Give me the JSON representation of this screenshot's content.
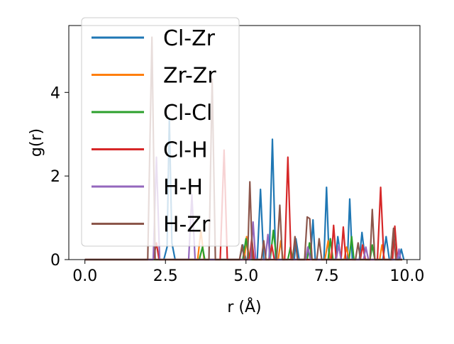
{
  "chart_data": {
    "type": "line",
    "xlabel": "r (Å)",
    "ylabel": "g(r)",
    "xlim": [
      -0.5,
      10.4
    ],
    "ylim": [
      0,
      5.6
    ],
    "x_ticks": [
      0.0,
      2.5,
      5.0,
      7.5,
      10.0
    ],
    "x_tick_labels": [
      "0.0",
      "2.5",
      "5.0",
      "7.5",
      "10.0"
    ],
    "y_ticks": [
      0,
      2,
      4
    ],
    "y_tick_labels": [
      "0",
      "2",
      "4"
    ],
    "grid": false,
    "legend_placement": "upper-left",
    "series": [
      {
        "name": "Cl-Zr",
        "color": "#1f77b4",
        "points": [
          [
            0,
            0
          ],
          [
            2.45,
            0
          ],
          [
            2.55,
            0.3
          ],
          [
            2.62,
            3.4
          ],
          [
            2.7,
            0.4
          ],
          [
            2.8,
            0
          ],
          [
            4.8,
            0
          ],
          [
            4.9,
            0.35
          ],
          [
            5.0,
            0
          ],
          [
            5.35,
            0
          ],
          [
            5.45,
            1.68
          ],
          [
            5.55,
            0
          ],
          [
            5.72,
            0
          ],
          [
            5.82,
            2.88
          ],
          [
            5.92,
            0
          ],
          [
            6.5,
            0
          ],
          [
            6.55,
            0.5
          ],
          [
            6.65,
            0
          ],
          [
            7.0,
            0
          ],
          [
            7.08,
            0.95
          ],
          [
            7.15,
            0
          ],
          [
            7.42,
            0
          ],
          [
            7.5,
            1.73
          ],
          [
            7.58,
            0
          ],
          [
            7.78,
            0
          ],
          [
            7.85,
            0.55
          ],
          [
            7.95,
            0
          ],
          [
            8.15,
            0
          ],
          [
            8.22,
            1.45
          ],
          [
            8.3,
            0
          ],
          [
            8.52,
            0
          ],
          [
            8.6,
            0.65
          ],
          [
            8.7,
            0
          ],
          [
            9.25,
            0
          ],
          [
            9.35,
            0.55
          ],
          [
            9.45,
            0
          ],
          [
            9.75,
            0
          ],
          [
            9.82,
            0.25
          ],
          [
            9.9,
            0
          ]
        ]
      },
      {
        "name": "Zr-Zr",
        "color": "#ff7f0e",
        "points": [
          [
            0,
            0
          ],
          [
            3.5,
            0
          ],
          [
            3.6,
            0.7
          ],
          [
            3.7,
            0
          ],
          [
            4.95,
            0
          ],
          [
            5.02,
            0.55
          ],
          [
            5.1,
            0
          ],
          [
            6.0,
            0
          ],
          [
            6.08,
            0.45
          ],
          [
            6.15,
            0
          ],
          [
            7.45,
            0
          ],
          [
            7.55,
            0.45
          ],
          [
            7.62,
            0
          ],
          [
            8.05,
            0
          ],
          [
            8.12,
            0.3
          ],
          [
            8.2,
            0
          ],
          [
            9.15,
            0
          ],
          [
            9.22,
            0.35
          ],
          [
            9.3,
            0
          ],
          [
            9.85,
            0
          ]
        ]
      },
      {
        "name": "Cl-Cl",
        "color": "#2ca02c",
        "points": [
          [
            0,
            0
          ],
          [
            3.55,
            0
          ],
          [
            3.65,
            0.3
          ],
          [
            3.72,
            0
          ],
          [
            4.9,
            0
          ],
          [
            5.0,
            0.5
          ],
          [
            5.1,
            0
          ],
          [
            5.75,
            0
          ],
          [
            5.85,
            0.7
          ],
          [
            5.95,
            0
          ],
          [
            6.3,
            0
          ],
          [
            6.38,
            0.3
          ],
          [
            6.45,
            0
          ],
          [
            6.9,
            0
          ],
          [
            6.97,
            0.4
          ],
          [
            7.05,
            0
          ],
          [
            7.55,
            0
          ],
          [
            7.62,
            0.5
          ],
          [
            7.7,
            0
          ],
          [
            8.2,
            0
          ],
          [
            8.28,
            0.55
          ],
          [
            8.35,
            0
          ],
          [
            8.85,
            0
          ],
          [
            8.92,
            0.35
          ],
          [
            9.0,
            0
          ],
          [
            9.85,
            0
          ]
        ]
      },
      {
        "name": "Cl-H",
        "color": "#d62728",
        "points": [
          [
            0,
            0
          ],
          [
            2.12,
            0
          ],
          [
            2.22,
            0.4
          ],
          [
            2.3,
            0
          ],
          [
            4.2,
            0
          ],
          [
            4.32,
            2.62
          ],
          [
            4.42,
            0
          ],
          [
            5.1,
            0
          ],
          [
            5.18,
            0.5
          ],
          [
            5.25,
            0
          ],
          [
            5.72,
            0
          ],
          [
            5.8,
            0.35
          ],
          [
            5.88,
            0
          ],
          [
            6.2,
            0
          ],
          [
            6.3,
            2.45
          ],
          [
            6.4,
            0
          ],
          [
            7.65,
            0
          ],
          [
            7.72,
            0.82
          ],
          [
            7.8,
            0
          ],
          [
            7.95,
            0
          ],
          [
            8.02,
            0.78
          ],
          [
            8.1,
            0
          ],
          [
            8.55,
            0
          ],
          [
            8.62,
            0.35
          ],
          [
            8.7,
            0
          ],
          [
            9.08,
            0
          ],
          [
            9.18,
            1.73
          ],
          [
            9.28,
            0
          ],
          [
            9.55,
            0
          ],
          [
            9.62,
            0.8
          ],
          [
            9.7,
            0
          ],
          [
            9.85,
            0
          ]
        ]
      },
      {
        "name": "H-H",
        "color": "#9467bd",
        "points": [
          [
            0,
            0
          ],
          [
            2.12,
            0
          ],
          [
            2.22,
            2.45
          ],
          [
            2.32,
            0
          ],
          [
            3.22,
            0
          ],
          [
            3.32,
            1.55
          ],
          [
            3.42,
            0
          ],
          [
            5.15,
            0
          ],
          [
            5.22,
            0.9
          ],
          [
            5.3,
            0
          ],
          [
            5.6,
            0
          ],
          [
            5.68,
            0.6
          ],
          [
            5.75,
            0
          ],
          [
            6.85,
            0
          ],
          [
            6.92,
            0.3
          ],
          [
            7.0,
            0
          ],
          [
            7.8,
            0
          ],
          [
            7.88,
            0.35
          ],
          [
            7.95,
            0
          ],
          [
            8.65,
            0
          ],
          [
            8.72,
            0.3
          ],
          [
            8.8,
            0
          ],
          [
            9.7,
            0
          ],
          [
            9.75,
            0.25
          ],
          [
            9.8,
            0
          ],
          [
            9.85,
            0
          ]
        ]
      },
      {
        "name": "H-Zr",
        "color": "#8c564b",
        "points": [
          [
            0,
            0
          ],
          [
            1.95,
            0
          ],
          [
            2.08,
            5.32
          ],
          [
            2.18,
            0
          ],
          [
            3.85,
            0
          ],
          [
            3.95,
            4.32
          ],
          [
            4.05,
            0
          ],
          [
            4.8,
            0
          ],
          [
            4.88,
            0.35
          ],
          [
            4.95,
            0
          ],
          [
            5.05,
            0
          ],
          [
            5.12,
            1.86
          ],
          [
            5.2,
            0
          ],
          [
            5.48,
            0
          ],
          [
            5.55,
            0.45
          ],
          [
            5.62,
            0
          ],
          [
            5.95,
            0
          ],
          [
            6.05,
            1.3
          ],
          [
            6.13,
            0
          ],
          [
            6.45,
            0
          ],
          [
            6.52,
            0.55
          ],
          [
            6.6,
            0
          ],
          [
            6.82,
            0
          ],
          [
            6.9,
            1.02
          ],
          [
            6.98,
            0.98
          ],
          [
            7.05,
            0
          ],
          [
            7.2,
            0
          ],
          [
            7.27,
            0.5
          ],
          [
            7.35,
            0
          ],
          [
            8.4,
            0
          ],
          [
            8.48,
            0.4
          ],
          [
            8.55,
            0
          ],
          [
            8.85,
            0
          ],
          [
            8.92,
            1.2
          ],
          [
            9.0,
            0
          ],
          [
            9.5,
            0
          ],
          [
            9.58,
            0.75
          ],
          [
            9.65,
            0
          ],
          [
            9.85,
            0
          ]
        ]
      }
    ]
  }
}
